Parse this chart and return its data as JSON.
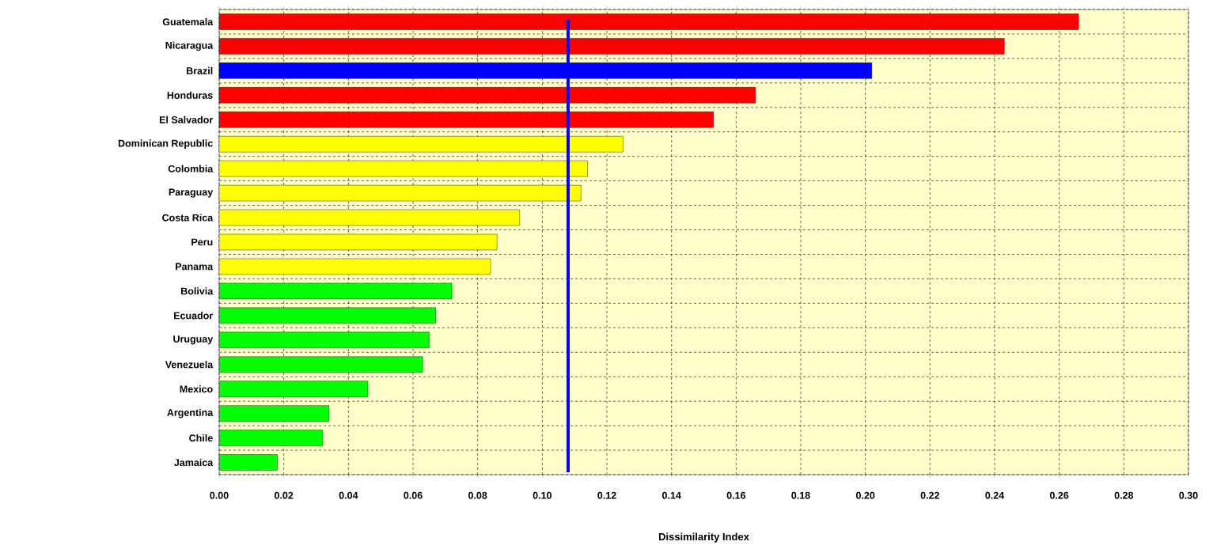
{
  "chart_data": {
    "type": "bar",
    "orientation": "horizontal",
    "xlabel": "Dissimilarity Index",
    "categories": [
      "Guatemala",
      "Nicaragua",
      "Brazil",
      "Honduras",
      "El Salvador",
      "Dominican Republic",
      "Colombia",
      "Paraguay",
      "Costa Rica",
      "Peru",
      "Panama",
      "Bolivia",
      "Ecuador",
      "Uruguay",
      "Venezuela",
      "Mexico",
      "Argentina",
      "Chile",
      "Jamaica"
    ],
    "values": [
      0.266,
      0.243,
      0.202,
      0.166,
      0.153,
      0.125,
      0.114,
      0.112,
      0.093,
      0.086,
      0.084,
      0.072,
      0.067,
      0.065,
      0.063,
      0.046,
      0.034,
      0.032,
      0.018
    ],
    "colors": [
      "#ff0000",
      "#ff0000",
      "#0000ff",
      "#ff0000",
      "#ff0000",
      "#ffff00",
      "#ffff00",
      "#ffff00",
      "#ffff00",
      "#ffff00",
      "#ffff00",
      "#00ff00",
      "#00ff00",
      "#00ff00",
      "#00ff00",
      "#00ff00",
      "#00ff00",
      "#00ff00",
      "#00ff00"
    ],
    "xlim": [
      0,
      0.3
    ],
    "xticks": [
      {
        "value": 0,
        "label": "0.00"
      },
      {
        "value": 0.02,
        "label": "0.02"
      },
      {
        "value": 0.04,
        "label": "0.04"
      },
      {
        "value": 0.06,
        "label": "0.06"
      },
      {
        "value": 0.08,
        "label": "0.08"
      },
      {
        "value": 0.1,
        "label": "0.10"
      },
      {
        "value": 0.12,
        "label": "0.12"
      },
      {
        "value": 0.14,
        "label": "0.14"
      },
      {
        "value": 0.16,
        "label": "0.16"
      },
      {
        "value": 0.18,
        "label": "0.18"
      },
      {
        "value": 0.2,
        "label": "0.20"
      },
      {
        "value": 0.22,
        "label": "0.22"
      },
      {
        "value": 0.24,
        "label": "0.24"
      },
      {
        "value": 0.26,
        "label": "0.26"
      },
      {
        "value": 0.28,
        "label": "0.28"
      },
      {
        "value": 0.3,
        "label": "0.30"
      }
    ],
    "ref_lines": [
      {
        "axis": "x",
        "value": 0.108,
        "color": "#0000ff"
      }
    ],
    "grid": true
  }
}
